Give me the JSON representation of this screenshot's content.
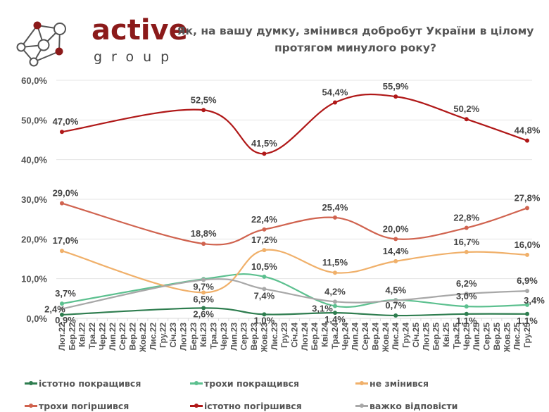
{
  "logo": {
    "word": "active",
    "sub": "group",
    "brand_color": "#8b1a1a"
  },
  "chart_data": {
    "type": "line",
    "title": "Як, на вашу думку, змінився добробут України в цілому протягом минулого року?",
    "title_lines": [
      "Як, на вашу думку, змінився добробут України в цілому",
      "протягом минулого року?"
    ],
    "xlabel": "",
    "ylabel": "",
    "ylim": [
      0,
      60
    ],
    "yticks": [
      "0,0%",
      "10,0%",
      "20,0%",
      "30,0%",
      "40,0%",
      "50,0%",
      "60,0%"
    ],
    "ytick_values": [
      0,
      10,
      20,
      30,
      40,
      50,
      60
    ],
    "grid": true,
    "legend_position": "bottom",
    "categories": [
      "Лют.22",
      "Бер.22",
      "Кві.22",
      "Тра.22",
      "Чер.22",
      "Лип.22",
      "Сер.22",
      "Вер.22",
      "Жов.22",
      "Лис.22",
      "Гру.22",
      "Січ.23",
      "Лют.23",
      "Бер.23",
      "Кві.23",
      "Тра.23",
      "Чер.23",
      "Лип.23",
      "Сер.23",
      "Вер.23",
      "Жов.23",
      "Лис.23",
      "Гру.23",
      "Січ.24",
      "Лют.24",
      "Бер.24",
      "Кві.24",
      "Тра.24",
      "Чер.24",
      "Лип.24",
      "Сер.24",
      "Вер.24",
      "Жов.24",
      "Лис.24",
      "Гру.24",
      "Січ.25",
      "Лют.25",
      "Бер.25",
      "Кві.25",
      "Тра.25",
      "Чер.25",
      "Лип.25",
      "Сер.25",
      "Вер.25",
      "Жов.25",
      "Лис.25",
      "Гру.25"
    ],
    "point_categories": [
      "Лют.22",
      "Кві.23",
      "Жов.23",
      "Тра.24",
      "Лис.24",
      "Чер.25",
      "Гру.25"
    ],
    "point_indices": [
      0,
      14,
      20,
      27,
      33,
      40,
      46
    ],
    "series": [
      {
        "name": "істотно покращився",
        "color": "#2e7d4f",
        "values": [
          0.9,
          2.6,
          1.0,
          1.4,
          0.7,
          1.1,
          1.1
        ],
        "labels": [
          "0,9%",
          "2,6%",
          "1,0%",
          "1,4%",
          "0,7%",
          "1,1%",
          "1,1%"
        ]
      },
      {
        "name": "трохи покращився",
        "color": "#5cc08f",
        "values": [
          3.7,
          9.9,
          10.5,
          3.1,
          4.6,
          3.0,
          3.4
        ],
        "labels": [
          "3,7%",
          "",
          "10,5%",
          "3,1%",
          "",
          "3,0%",
          "3,4%"
        ]
      },
      {
        "name": "не змінився",
        "color": "#f0b06a",
        "values": [
          17.0,
          6.5,
          17.2,
          11.5,
          14.4,
          16.7,
          16.0
        ],
        "labels": [
          "17,0%",
          "6,5%",
          "17,2%",
          "11,5%",
          "14,4%",
          "16,7%",
          "16,0%"
        ]
      },
      {
        "name": "трохи погіршився",
        "color": "#d0634f",
        "values": [
          29.0,
          18.8,
          22.4,
          25.4,
          20.0,
          22.8,
          27.8
        ],
        "labels": [
          "29,0%",
          "18,8%",
          "22,4%",
          "25,4%",
          "20,0%",
          "22,8%",
          "27,8%"
        ]
      },
      {
        "name": "істотно погіршився",
        "color": "#b01818",
        "values": [
          47.0,
          52.5,
          41.5,
          54.4,
          55.9,
          50.2,
          44.8
        ],
        "labels": [
          "47,0%",
          "52,5%",
          "41,5%",
          "54,4%",
          "55,9%",
          "50,2%",
          "44,8%"
        ]
      },
      {
        "name": "важко відповісти",
        "color": "#a8a8a8",
        "values": [
          2.4,
          9.7,
          7.4,
          4.2,
          4.5,
          6.2,
          6.9
        ],
        "labels": [
          "2,4%",
          "9,7%",
          "7,4%",
          "4,2%",
          "4,5%",
          "6,2%",
          "6,9%"
        ]
      }
    ]
  },
  "legend": [
    {
      "label": "істотно покращився",
      "color": "#2e7d4f"
    },
    {
      "label": "трохи покращився",
      "color": "#5cc08f"
    },
    {
      "label": "не змінився",
      "color": "#f0b06a"
    },
    {
      "label": "трохи погіршився",
      "color": "#d0634f"
    },
    {
      "label": "істотно погіршився",
      "color": "#b01818"
    },
    {
      "label": "важко відповісти",
      "color": "#a8a8a8"
    }
  ]
}
